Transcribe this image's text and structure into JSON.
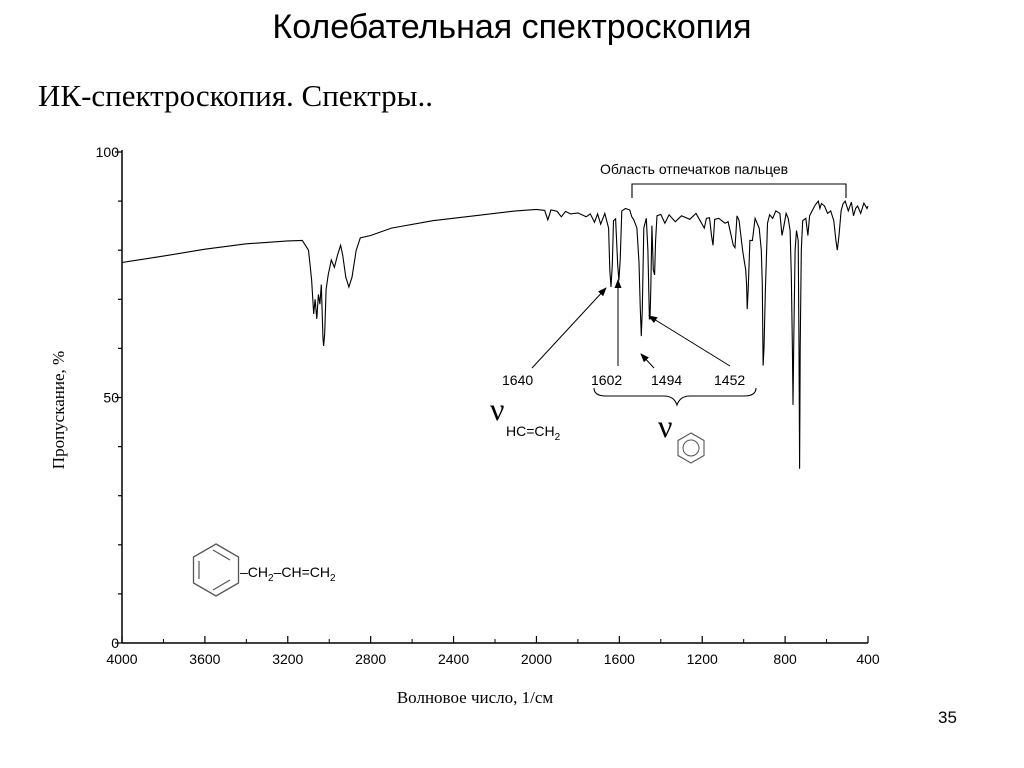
{
  "slide": {
    "title": "Колебательная спектроскопия",
    "subtitle": "ИК-спектроскопия. Спектры..",
    "page_number": "35"
  },
  "chart_data": {
    "type": "line",
    "title": "",
    "xlabel": "Волновое число, 1/см",
    "ylabel": "Пропускание, %",
    "xlim": [
      4000,
      400
    ],
    "ylim": [
      0,
      100
    ],
    "x_ticks": [
      4000,
      3600,
      3200,
      2800,
      2400,
      2000,
      1600,
      1200,
      800,
      400
    ],
    "y_ticks": [
      0,
      50,
      100
    ],
    "grid": false,
    "series": [
      {
        "points": [
          [
            4000,
            77.5
          ],
          [
            3800,
            78.8
          ],
          [
            3600,
            80.2
          ],
          [
            3400,
            81.3
          ],
          [
            3200,
            81.9
          ],
          [
            3130,
            82.0
          ],
          [
            3100,
            80
          ],
          [
            3085,
            74
          ],
          [
            3075,
            67
          ],
          [
            3068,
            70
          ],
          [
            3060,
            66
          ],
          [
            3052,
            71
          ],
          [
            3045,
            69
          ],
          [
            3038,
            73
          ],
          [
            3030,
            62
          ],
          [
            3027,
            60.5
          ],
          [
            3022,
            63
          ],
          [
            3015,
            72
          ],
          [
            3005,
            75
          ],
          [
            2990,
            78
          ],
          [
            2975,
            76.5
          ],
          [
            2960,
            79
          ],
          [
            2945,
            81
          ],
          [
            2935,
            79
          ],
          [
            2920,
            74.5
          ],
          [
            2905,
            72.5
          ],
          [
            2890,
            74.5
          ],
          [
            2870,
            80
          ],
          [
            2850,
            82.5
          ],
          [
            2800,
            83
          ],
          [
            2700,
            84.5
          ],
          [
            2500,
            86
          ],
          [
            2300,
            87
          ],
          [
            2100,
            88
          ],
          [
            2000,
            88.3
          ],
          [
            1960,
            88.1
          ],
          [
            1945,
            86.2
          ],
          [
            1930,
            88.2
          ],
          [
            1900,
            87.9
          ],
          [
            1880,
            86.8
          ],
          [
            1860,
            87.9
          ],
          [
            1835,
            87.4
          ],
          [
            1800,
            87.6
          ],
          [
            1760,
            86.8
          ],
          [
            1740,
            87.4
          ],
          [
            1720,
            85.7
          ],
          [
            1705,
            87.4
          ],
          [
            1690,
            85.3
          ],
          [
            1670,
            87.5
          ],
          [
            1652,
            84.5
          ],
          [
            1646,
            76
          ],
          [
            1640,
            72.5
          ],
          [
            1634,
            77
          ],
          [
            1628,
            86
          ],
          [
            1618,
            86.4
          ],
          [
            1608,
            77
          ],
          [
            1602,
            73.8
          ],
          [
            1596,
            78
          ],
          [
            1588,
            88
          ],
          [
            1570,
            88.5
          ],
          [
            1550,
            88.2
          ],
          [
            1540,
            86.8
          ],
          [
            1530,
            86.2
          ],
          [
            1515,
            84.5
          ],
          [
            1505,
            77.5
          ],
          [
            1499,
            68
          ],
          [
            1494,
            62.5
          ],
          [
            1489,
            68
          ],
          [
            1482,
            84.5
          ],
          [
            1470,
            86.5
          ],
          [
            1462,
            80
          ],
          [
            1455,
            66
          ],
          [
            1452,
            66
          ],
          [
            1448,
            72
          ],
          [
            1443,
            85
          ],
          [
            1436,
            76
          ],
          [
            1430,
            75
          ],
          [
            1425,
            82
          ],
          [
            1418,
            87
          ],
          [
            1400,
            87.3
          ],
          [
            1380,
            85.5
          ],
          [
            1360,
            87.2
          ],
          [
            1330,
            85.8
          ],
          [
            1300,
            87
          ],
          [
            1260,
            86.3
          ],
          [
            1230,
            87.5
          ],
          [
            1210,
            86
          ],
          [
            1190,
            84.5
          ],
          [
            1180,
            86.5
          ],
          [
            1165,
            86.6
          ],
          [
            1155,
            83
          ],
          [
            1148,
            81
          ],
          [
            1140,
            86.3
          ],
          [
            1120,
            86.5
          ],
          [
            1090,
            85.5
          ],
          [
            1075,
            85.8
          ],
          [
            1050,
            81
          ],
          [
            1042,
            80.5
          ],
          [
            1032,
            87
          ],
          [
            1022,
            86
          ],
          [
            1005,
            80
          ],
          [
            998,
            78
          ],
          [
            990,
            76
          ],
          [
            986,
            73
          ],
          [
            983,
            68
          ],
          [
            978,
            72
          ],
          [
            970,
            82
          ],
          [
            958,
            82
          ],
          [
            945,
            86.5
          ],
          [
            935,
            85.5
          ],
          [
            925,
            84.5
          ],
          [
            915,
            80
          ],
          [
            910,
            73
          ],
          [
            906,
            56.5
          ],
          [
            902,
            60
          ],
          [
            895,
            72
          ],
          [
            885,
            85.5
          ],
          [
            875,
            87.2
          ],
          [
            860,
            86.5
          ],
          [
            845,
            88
          ],
          [
            825,
            87.5
          ],
          [
            815,
            83
          ],
          [
            808,
            84.5
          ],
          [
            795,
            87.5
          ],
          [
            785,
            86.5
          ],
          [
            776,
            84
          ],
          [
            770,
            75
          ],
          [
            765,
            60
          ],
          [
            762,
            48.5
          ],
          [
            758,
            62
          ],
          [
            752,
            80
          ],
          [
            745,
            84
          ],
          [
            737,
            82
          ],
          [
            733,
            60
          ],
          [
            730,
            35.5
          ],
          [
            727,
            60
          ],
          [
            722,
            80
          ],
          [
            715,
            86
          ],
          [
            700,
            86.5
          ],
          [
            690,
            83
          ],
          [
            682,
            87
          ],
          [
            670,
            88
          ],
          [
            655,
            89.2
          ],
          [
            640,
            90
          ],
          [
            632,
            88.5
          ],
          [
            625,
            89.5
          ],
          [
            610,
            89
          ],
          [
            595,
            87.5
          ],
          [
            580,
            88
          ],
          [
            565,
            86
          ],
          [
            555,
            82
          ],
          [
            548,
            80
          ],
          [
            540,
            83
          ],
          [
            530,
            88
          ],
          [
            520,
            89.5
          ],
          [
            510,
            90
          ],
          [
            495,
            88
          ],
          [
            480,
            89.8
          ],
          [
            470,
            87
          ],
          [
            460,
            88.5
          ],
          [
            450,
            89
          ],
          [
            435,
            87.5
          ],
          [
            420,
            89.6
          ],
          [
            405,
            88.5
          ],
          [
            400,
            89
          ]
        ]
      }
    ],
    "annotations": {
      "fingerprint_label": "Область отпечатков пальцев",
      "peak_1640": "1640",
      "peak_1602": "1602",
      "peak_1494": "1494",
      "peak_1452": "1452",
      "nu_symbol": "ν",
      "nu_vinyl_subscript": "HC=CH",
      "nu_vinyl_subscript_index": "2",
      "nu_benzene_symbol": "ν",
      "molecule_chain": "CH",
      "molecule_index_1": "2",
      "molecule_bond": "–CH=CH",
      "molecule_index_2": "2",
      "molecule_dash": "–"
    }
  }
}
